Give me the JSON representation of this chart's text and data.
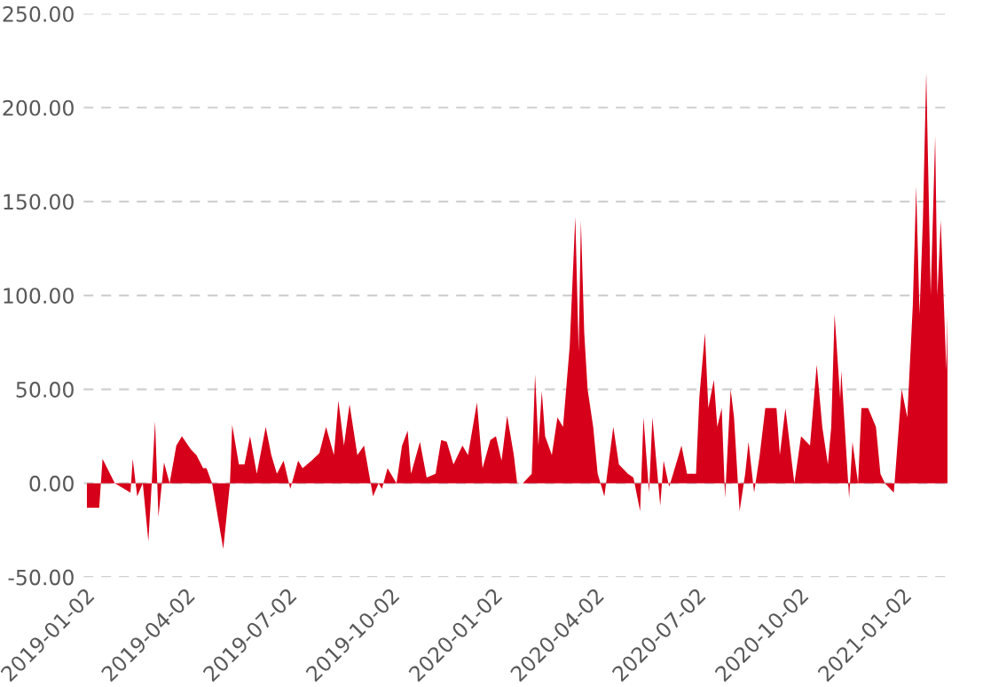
{
  "chart_data": {
    "type": "area",
    "xlim": [
      "2019-01-01",
      "2021-02-13"
    ],
    "xticks": [
      "2019-01-02",
      "2019-04-02",
      "2019-07-02",
      "2019-10-02",
      "2020-01-02",
      "2020-04-02",
      "2020-07-02",
      "2020-10-02",
      "2021-01-02"
    ],
    "ylim": [
      -50,
      250
    ],
    "yticks": [
      {
        "value": -50,
        "label": "-50.00"
      },
      {
        "value": 0,
        "label": "0.00"
      },
      {
        "value": 50,
        "label": "50.00"
      },
      {
        "value": 100,
        "label": "100.00"
      },
      {
        "value": 150,
        "label": "150.00"
      },
      {
        "value": 200,
        "label": "200.00"
      },
      {
        "value": 250,
        "label": "250.00"
      }
    ],
    "grid": "y",
    "series": [
      {
        "color": "#d7001a",
        "x": [
          "2019-01-04",
          "2019-01-15",
          "2019-01-18",
          "2019-01-29",
          "2019-02-12",
          "2019-02-14",
          "2019-02-18",
          "2019-02-23",
          "2019-02-28",
          "2019-03-03",
          "2019-03-06",
          "2019-03-09",
          "2019-03-14",
          "2019-03-19",
          "2019-03-25",
          "2019-03-30",
          "2019-04-07",
          "2019-04-12",
          "2019-04-18",
          "2019-04-21",
          "2019-04-26",
          "2019-05-06",
          "2019-05-12",
          "2019-05-14",
          "2019-05-20",
          "2019-05-25",
          "2019-05-30",
          "2019-06-05",
          "2019-06-13",
          "2019-06-18",
          "2019-06-23",
          "2019-06-29",
          "2019-07-05",
          "2019-07-12",
          "2019-07-16",
          "2019-07-24",
          "2019-07-31",
          "2019-08-06",
          "2019-08-13",
          "2019-08-17",
          "2019-08-22",
          "2019-08-27",
          "2019-09-03",
          "2019-09-09",
          "2019-09-17",
          "2019-09-22",
          "2019-09-25",
          "2019-09-30",
          "2019-10-08",
          "2019-10-13",
          "2019-10-18",
          "2019-10-21",
          "2019-10-29",
          "2019-11-04",
          "2019-11-12",
          "2019-11-17",
          "2019-11-22",
          "2019-11-28",
          "2019-12-06",
          "2019-12-11",
          "2019-12-19",
          "2019-12-24",
          "2019-12-31",
          "2020-01-05",
          "2020-01-10",
          "2020-01-15",
          "2020-01-21",
          "2020-01-24",
          "2020-01-29",
          "2020-02-06",
          "2020-02-09",
          "2020-02-12",
          "2020-02-15",
          "2020-02-18",
          "2020-02-24",
          "2020-02-29",
          "2020-03-05",
          "2020-03-11",
          "2020-03-16",
          "2020-03-19",
          "2020-03-21",
          "2020-03-24",
          "2020-03-27",
          "2020-04-01",
          "2020-04-05",
          "2020-04-11",
          "2020-04-19",
          "2020-04-24",
          "2020-05-02",
          "2020-05-07",
          "2020-05-13",
          "2020-05-16",
          "2020-05-21",
          "2020-05-24",
          "2020-05-31",
          "2020-06-03",
          "2020-06-08",
          "2020-06-14",
          "2020-06-19",
          "2020-06-24",
          "2020-07-02",
          "2020-07-05",
          "2020-07-10",
          "2020-07-13",
          "2020-07-18",
          "2020-07-21",
          "2020-07-25",
          "2020-07-28",
          "2020-08-02",
          "2020-08-05",
          "2020-08-10",
          "2020-08-15",
          "2020-08-18",
          "2020-08-23",
          "2020-08-28",
          "2020-09-02",
          "2020-09-05",
          "2020-09-12",
          "2020-09-15",
          "2020-09-20",
          "2020-09-25",
          "2020-09-28",
          "2020-10-04",
          "2020-10-12",
          "2020-10-18",
          "2020-10-23",
          "2020-10-28",
          "2020-10-31",
          "2020-11-03",
          "2020-11-08",
          "2020-11-09",
          "2020-11-16",
          "2020-11-19",
          "2020-11-24",
          "2020-11-27",
          "2020-12-03",
          "2020-12-10",
          "2020-12-14",
          "2020-12-18",
          "2020-12-26",
          "2021-01-02",
          "2021-01-07",
          "2021-01-12",
          "2021-01-15",
          "2021-01-18",
          "2021-01-21",
          "2021-01-24",
          "2021-01-28",
          "2021-02-01",
          "2021-02-03",
          "2021-02-06",
          "2021-02-11",
          "2021-02-12"
        ],
        "values": [
          -13,
          -13,
          13,
          0,
          -5,
          13,
          -7,
          0,
          -31,
          0,
          33,
          -18,
          11,
          0,
          20,
          25,
          18,
          15,
          8,
          8,
          0,
          -35,
          0,
          31,
          10,
          10,
          25,
          5,
          30,
          15,
          5,
          12,
          -3,
          12,
          8,
          12,
          16,
          30,
          15,
          44,
          20,
          42,
          15,
          20,
          -7,
          0,
          -3,
          8,
          0,
          20,
          28,
          5,
          22,
          3,
          5,
          23,
          22,
          10,
          20,
          15,
          43,
          8,
          23,
          25,
          12,
          36,
          15,
          0,
          0,
          5,
          58,
          20,
          49,
          25,
          15,
          35,
          30,
          73,
          142,
          70,
          140,
          80,
          50,
          30,
          5,
          -7,
          30,
          10,
          5,
          3,
          -15,
          35,
          -5,
          35,
          -12,
          12,
          -2,
          10,
          20,
          5,
          5,
          46,
          80,
          40,
          55,
          30,
          40,
          -8,
          50,
          35,
          -15,
          5,
          22,
          -5,
          15,
          40,
          40,
          40,
          15,
          40,
          15,
          0,
          25,
          20,
          63,
          30,
          10,
          30,
          90,
          45,
          60,
          -8,
          22,
          0,
          40,
          40,
          30,
          5,
          0,
          -5,
          50,
          35,
          95,
          158,
          90,
          140,
          219,
          100,
          185,
          100,
          140,
          60,
          90
        ]
      }
    ]
  }
}
